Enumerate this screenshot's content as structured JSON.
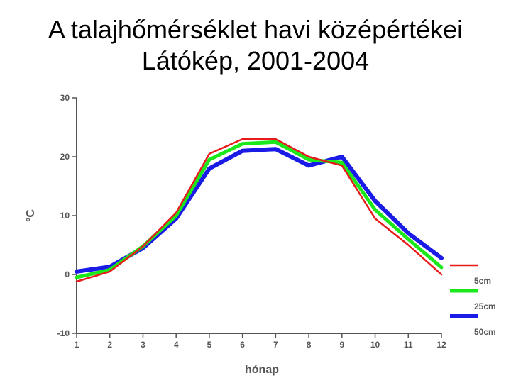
{
  "chart_data": {
    "type": "line",
    "title": "A talajhőmérséklet havi középértékei",
    "subtitle": "Látókép, 2001-2004",
    "xlabel": "hónap",
    "ylabel": "°C",
    "x": [
      1,
      2,
      3,
      4,
      5,
      6,
      7,
      8,
      9,
      10,
      11,
      12
    ],
    "ylim": [
      -10,
      30
    ],
    "yticks": [
      -10,
      0,
      10,
      20,
      30
    ],
    "grid": false,
    "legend": "right",
    "series": [
      {
        "name": "5cm",
        "color": "#e81b1b",
        "values": [
          -1.2,
          0.5,
          4.8,
          10.5,
          20.5,
          23.0,
          23.0,
          20.0,
          18.5,
          9.5,
          5.0,
          0.0
        ]
      },
      {
        "name": "25cm",
        "color": "#1be81b",
        "values": [
          -0.5,
          0.8,
          4.8,
          10.0,
          19.5,
          22.2,
          22.5,
          19.5,
          19.0,
          11.0,
          6.0,
          1.2
        ]
      },
      {
        "name": "50cm",
        "color": "#1b1be8",
        "values": [
          0.5,
          1.3,
          4.5,
          9.5,
          18.0,
          21.0,
          21.3,
          18.5,
          20.0,
          12.5,
          7.0,
          2.8
        ]
      }
    ]
  }
}
